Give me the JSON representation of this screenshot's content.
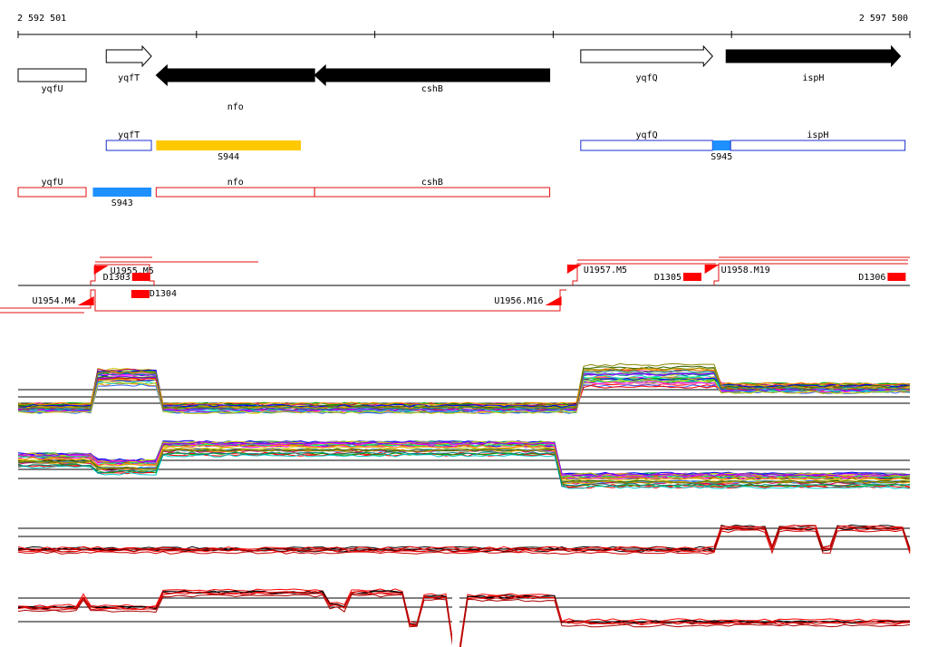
{
  "ruler": {
    "start_label": "2 592 501",
    "end_label": "2 597 500"
  },
  "genes": [
    {
      "name": "yqfU",
      "strand": "+",
      "style": "outline",
      "start_bp": 2592501,
      "end_bp": 2592882
    },
    {
      "name": "yqfT",
      "strand": "+",
      "style": "outline",
      "start_bp": 2592995,
      "end_bp": 2593248
    },
    {
      "name": "nfo",
      "strand": "-",
      "style": "filled",
      "start_bp": 2593275,
      "end_bp": 2594163
    },
    {
      "name": "cshB",
      "strand": "-",
      "style": "filled",
      "start_bp": 2594163,
      "end_bp": 2595481
    },
    {
      "name": "yqfQ",
      "strand": "+",
      "style": "outline",
      "start_bp": 2595655,
      "end_bp": 2596394
    },
    {
      "name": "ispH",
      "strand": "+",
      "style": "filled",
      "start_bp": 2596470,
      "end_bp": 2597447
    }
  ],
  "transcripts_top": [
    {
      "label": "yqfT",
      "type": "outline",
      "color": "#1a2fd0",
      "start_bp": 2592995,
      "end_bp": 2593248
    },
    {
      "label": "S944",
      "type": "filled",
      "color": "#ffc800",
      "start_bp": 2593275,
      "end_bp": 2594086
    },
    {
      "label": "yqfQ",
      "type": "outline",
      "color": "#1a2fd0",
      "start_bp": 2595655,
      "end_bp": 2596394
    },
    {
      "label": "S945",
      "type": "filled",
      "color": "#1e90ff",
      "start_bp": 2596394,
      "end_bp": 2596495
    },
    {
      "label": "ispH",
      "type": "outline",
      "color": "#1a2fd0",
      "start_bp": 2596495,
      "end_bp": 2597473
    }
  ],
  "transcripts_bottom": [
    {
      "label": "yqfU",
      "type": "outline",
      "color": "#e01010",
      "start_bp": 2592501,
      "end_bp": 2592882
    },
    {
      "label": "S943",
      "type": "filled",
      "color": "#1e90ff",
      "start_bp": 2592920,
      "end_bp": 2593248
    },
    {
      "label": "nfo",
      "type": "outline",
      "color": "#e01010",
      "start_bp": 2593275,
      "end_bp": 2594163
    },
    {
      "label": "cshB",
      "type": "outline",
      "color": "#e01010",
      "start_bp": 2594163,
      "end_bp": 2595481
    }
  ],
  "upshifts": [
    {
      "label": "U1954.M4",
      "strand": "-",
      "pos_bp": 2592926
    },
    {
      "label": "U1955.M5",
      "strand": "+",
      "pos_bp": 2592926
    },
    {
      "label": "U1956.M16",
      "strand": "-",
      "pos_bp": 2595547
    },
    {
      "label": "U1957.M5",
      "strand": "+",
      "pos_bp": 2595579
    },
    {
      "label": "U1958.M19",
      "strand": "+",
      "pos_bp": 2596350
    }
  ],
  "downshifts": [
    {
      "label": "D1303",
      "strand": "+",
      "pos_bp": 2593140
    },
    {
      "label": "D1304",
      "strand": "-",
      "pos_bp": 2593237
    },
    {
      "label": "D1305",
      "strand": "+",
      "pos_bp": 2596230
    },
    {
      "label": "D1306",
      "strand": "+",
      "pos_bp": 2597375
    }
  ],
  "colors": {
    "gene_filled": "#000000",
    "strand_plus": "#1a2fd0",
    "strand_minus": "#e01010",
    "shift": "#ff0000",
    "axis": "#000000"
  }
}
